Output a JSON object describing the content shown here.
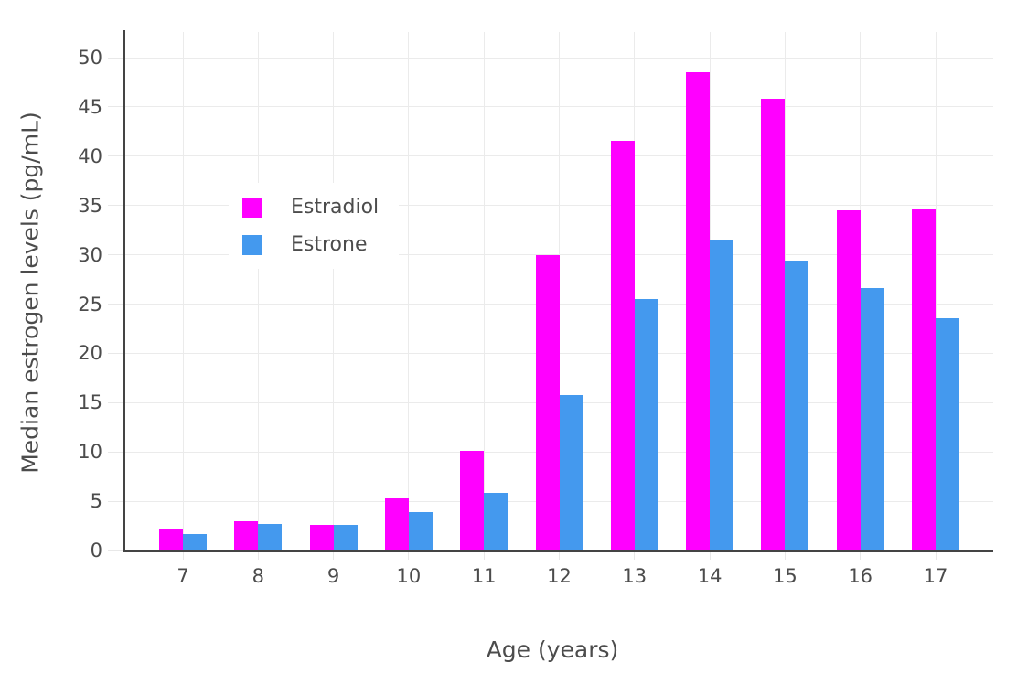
{
  "chart_data": {
    "type": "bar",
    "title": "",
    "xlabel": "Age (years)",
    "ylabel": "Median estrogen levels (pg/mL)",
    "categories": [
      7,
      8,
      9,
      10,
      11,
      12,
      13,
      14,
      15,
      16,
      17
    ],
    "series": [
      {
        "name": "Estradiol",
        "color": "#FF00FF",
        "values": [
          2.2,
          3.0,
          2.6,
          5.3,
          10.1,
          30.0,
          41.6,
          48.5,
          45.8,
          34.5,
          34.6
        ]
      },
      {
        "name": "Estrone",
        "color": "#4499EE",
        "values": [
          1.7,
          2.7,
          2.6,
          3.9,
          5.8,
          15.8,
          25.5,
          31.5,
          29.4,
          26.6,
          23.6
        ]
      }
    ],
    "yticks": [
      0,
      5,
      10,
      15,
      20,
      25,
      30,
      35,
      40,
      45,
      50
    ],
    "ylim": [
      0,
      52.6
    ],
    "grid": true,
    "legend_position": "inside-top-left",
    "colors": {
      "axis_line": "#444444",
      "gridline": "#ebebeb",
      "tick_mark": "#e8e8e8",
      "text": "#4c4c4c",
      "background": "#ffffff"
    }
  }
}
